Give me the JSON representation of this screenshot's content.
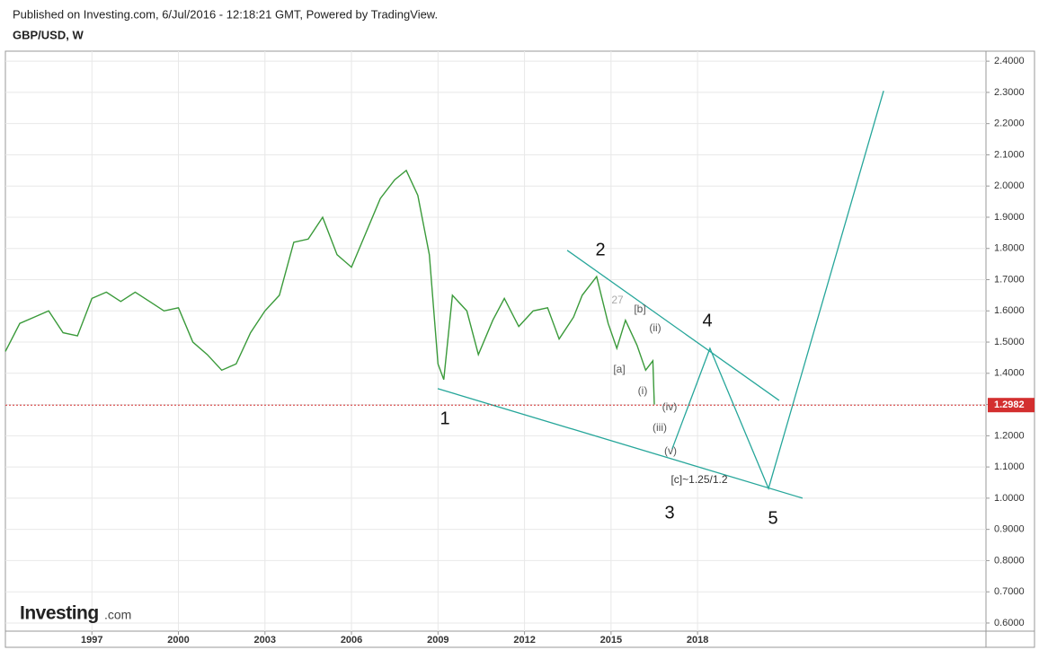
{
  "header": {
    "published": "Published on Investing.com, 6/Jul/2016 - 12:18:21 GMT, Powered by TradingView.",
    "symbol": "GBP/USD, W"
  },
  "logo": {
    "name": "Investing",
    "suffix": ".com"
  },
  "chart_data": {
    "type": "line",
    "x": [
      1994.0,
      1994.5,
      1995.0,
      1995.5,
      1996.0,
      1996.5,
      1997.0,
      1997.5,
      1998.0,
      1998.5,
      1999.0,
      1999.5,
      2000.0,
      2000.5,
      2001.0,
      2001.5,
      2002.0,
      2002.5,
      2003.0,
      2003.5,
      2004.0,
      2004.5,
      2005.0,
      2005.5,
      2006.0,
      2006.5,
      2007.0,
      2007.5,
      2007.9,
      2008.3,
      2008.7,
      2009.0,
      2009.2,
      2009.5,
      2010.0,
      2010.4,
      2010.9,
      2011.3,
      2011.8,
      2012.3,
      2012.8,
      2013.2,
      2013.7,
      2014.0,
      2014.5,
      2014.9,
      2015.2,
      2015.5,
      2015.9,
      2016.2,
      2016.45,
      2016.5
    ],
    "series": [
      {
        "name": "GBP/USD",
        "color": "#3a9a3a",
        "values": [
          1.47,
          1.56,
          1.58,
          1.6,
          1.53,
          1.52,
          1.64,
          1.66,
          1.63,
          1.66,
          1.63,
          1.6,
          1.61,
          1.5,
          1.46,
          1.41,
          1.43,
          1.53,
          1.6,
          1.65,
          1.82,
          1.83,
          1.9,
          1.78,
          1.74,
          1.85,
          1.96,
          2.02,
          2.05,
          1.97,
          1.78,
          1.43,
          1.38,
          1.65,
          1.6,
          1.46,
          1.57,
          1.64,
          1.55,
          1.6,
          1.61,
          1.51,
          1.58,
          1.65,
          1.71,
          1.56,
          1.48,
          1.57,
          1.49,
          1.41,
          1.44,
          1.3
        ]
      }
    ],
    "trend_lines": [
      {
        "color": "#26a69a",
        "x": [
          2008.99,
          2021.64
        ],
        "values": [
          1.351,
          1.0
        ]
      },
      {
        "color": "#26a69a",
        "x": [
          2013.48,
          2020.83
        ],
        "values": [
          1.794,
          1.313
        ]
      },
      {
        "color": "#26a69a",
        "x": [
          2017.12,
          2018.43,
          2020.46,
          2024.45
        ],
        "values": [
          1.158,
          1.48,
          1.031,
          2.305
        ]
      }
    ],
    "last_price": 1.2982,
    "annotations": [
      "2",
      "1",
      "4",
      "3",
      "5",
      "27",
      "[b]",
      "(ii)",
      "[a]",
      "(i)",
      "(iv)",
      "(iii)",
      "(v)",
      "[c]~1.25/1.2"
    ],
    "xlim": [
      1994.0,
      2028.0
    ],
    "xticks": [
      1997,
      2000,
      2003,
      2006,
      2009,
      2012,
      2015,
      2018
    ],
    "ylim": [
      0.574,
      2.432
    ],
    "yticks": [
      {
        "value": 0.6,
        "label": "0.6000"
      },
      {
        "value": 0.7,
        "label": "0.7000"
      },
      {
        "value": 0.8,
        "label": "0.8000"
      },
      {
        "value": 0.9,
        "label": "0.9000"
      },
      {
        "value": 1.0,
        "label": "1.0000"
      },
      {
        "value": 1.1,
        "label": "1.1000"
      },
      {
        "value": 1.2,
        "label": "1.2000"
      },
      {
        "value": 1.3,
        "label": "1.3000"
      },
      {
        "value": 1.4,
        "label": "1.4000"
      },
      {
        "value": 1.5,
        "label": "1.5000"
      },
      {
        "value": 1.6,
        "label": "1.6000"
      },
      {
        "value": 1.7,
        "label": "1.7000"
      },
      {
        "value": 1.8,
        "label": "1.8000"
      },
      {
        "value": 1.9,
        "label": "1.9000"
      },
      {
        "value": 2.0,
        "label": "2.0000"
      },
      {
        "value": 2.1,
        "label": "2.1000"
      },
      {
        "value": 2.2,
        "label": "2.2000"
      },
      {
        "value": 2.3,
        "label": "2.3000"
      },
      {
        "value": 2.4,
        "label": "2.4000"
      }
    ],
    "grid": true
  }
}
